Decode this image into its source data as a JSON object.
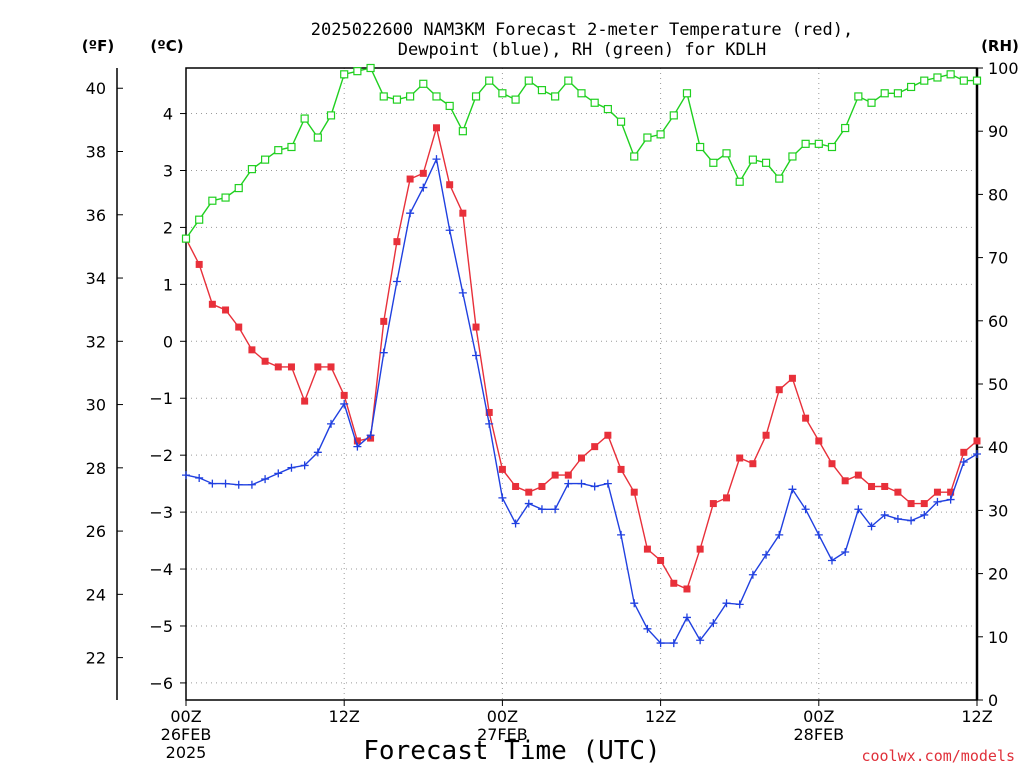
{
  "chart_data": {
    "type": "line",
    "title_line1": "2025022600 NAM3KM Forecast 2-meter Temperature (red),",
    "title_line2": "Dewpoint (blue), RH (green) for KDLH",
    "xlabel": "Forecast Time (UTC)",
    "credit": "coolwx.com/models",
    "left_unit_f": "(ºF)",
    "left_unit_c": "(ºC)",
    "right_unit": "(RH)",
    "ylim_c": [
      -6.3,
      4.8
    ],
    "ylim_rh": [
      0,
      100
    ],
    "xlim_hours": [
      0,
      60
    ],
    "x_ticks": [
      {
        "hour": 0,
        "lines": [
          "00Z",
          "26FEB",
          "2025"
        ]
      },
      {
        "hour": 12,
        "lines": [
          "12Z"
        ]
      },
      {
        "hour": 24,
        "lines": [
          "00Z",
          "27FEB"
        ]
      },
      {
        "hour": 36,
        "lines": [
          "12Z"
        ]
      },
      {
        "hour": 48,
        "lines": [
          "00Z",
          "28FEB"
        ]
      },
      {
        "hour": 60,
        "lines": [
          "12Z"
        ]
      }
    ],
    "y_ticks_c": [
      -6,
      -5,
      -4,
      -3,
      -2,
      -1,
      0,
      1,
      2,
      3,
      4
    ],
    "y_ticks_f": [
      22,
      24,
      26,
      28,
      30,
      32,
      34,
      36,
      38,
      40
    ],
    "y_ticks_rh": [
      0,
      10,
      20,
      30,
      40,
      50,
      60,
      70,
      80,
      90,
      100
    ],
    "colors": {
      "temperature": "#e8303a",
      "dewpoint": "#2040e0",
      "rh": "#20d020"
    },
    "series": [
      {
        "key": "temperature",
        "values": [
          1.8,
          1.35,
          0.65,
          0.55,
          0.25,
          -0.15,
          -0.35,
          -0.45,
          -0.45,
          -1.05,
          -0.45,
          -0.45,
          -0.95,
          -1.75,
          -1.7,
          0.35,
          1.75,
          2.85,
          2.95,
          3.75,
          2.75,
          2.25,
          0.25,
          -1.25,
          -2.25,
          -2.55,
          -2.65,
          -2.55,
          -2.35,
          -2.35,
          -2.05,
          -1.85,
          -1.65,
          -2.25,
          -2.65,
          -3.65,
          -3.85,
          -4.25,
          -4.35,
          -3.65,
          -2.85,
          -2.75,
          -2.05,
          -2.15,
          -1.65,
          -0.85,
          -0.65,
          -1.35,
          -1.75,
          -2.15,
          -2.45,
          -2.35,
          -2.55,
          -2.55,
          -2.65,
          -2.85,
          -2.85,
          -2.65,
          -2.65,
          -1.95,
          -1.75
        ]
      },
      {
        "key": "dewpoint",
        "values": [
          -2.35,
          -2.4,
          -2.5,
          -2.5,
          -2.52,
          -2.52,
          -2.42,
          -2.32,
          -2.22,
          -2.18,
          -1.95,
          -1.45,
          -1.1,
          -1.85,
          -1.65,
          -0.2,
          1.05,
          2.25,
          2.7,
          3.2,
          1.95,
          0.85,
          -0.25,
          -1.45,
          -2.75,
          -3.2,
          -2.85,
          -2.95,
          -2.95,
          -2.5,
          -2.5,
          -2.55,
          -2.5,
          -3.4,
          -4.6,
          -5.05,
          -5.3,
          -5.3,
          -4.85,
          -5.25,
          -4.95,
          -4.6,
          -4.62,
          -4.1,
          -3.75,
          -3.4,
          -2.6,
          -2.95,
          -3.4,
          -3.85,
          -3.7,
          -2.95,
          -3.25,
          -3.05,
          -3.12,
          -3.15,
          -3.05,
          -2.82,
          -2.78,
          -2.12,
          -1.98
        ]
      },
      {
        "key": "rh",
        "values": [
          73,
          76,
          79,
          79.5,
          81,
          84,
          85.5,
          87,
          87.5,
          92,
          89,
          92.5,
          99,
          99.5,
          100,
          95.5,
          95,
          95.5,
          97.5,
          95.5,
          94,
          90,
          95.5,
          98,
          96,
          95,
          98,
          96.5,
          95.5,
          98,
          96,
          94.5,
          93.5,
          91.5,
          86,
          89,
          89.5,
          92.5,
          96,
          87.5,
          85,
          86.5,
          82,
          85.5,
          85,
          82.5,
          86,
          88,
          88,
          87.5,
          90.5,
          95.5,
          94.5,
          96,
          96,
          97,
          98,
          98.5,
          99,
          98,
          98
        ]
      }
    ]
  }
}
